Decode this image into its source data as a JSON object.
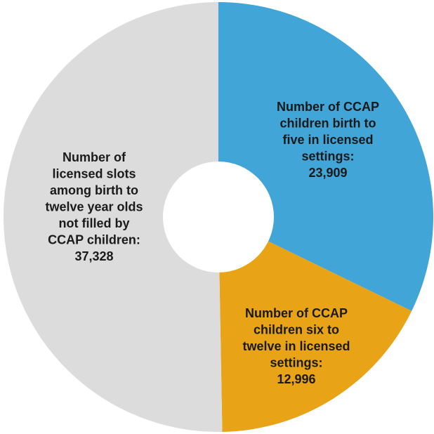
{
  "chart_data": {
    "type": "pie",
    "donut": true,
    "title": "",
    "slices": [
      {
        "label_lines": [
          "Number of CCAP",
          "children birth to",
          "five in licensed",
          "settings:"
        ],
        "value_text": "23,909",
        "value": 23909,
        "color": "#41A5D7"
      },
      {
        "label_lines": [
          "Number of CCAP",
          "children six to",
          "twelve in licensed",
          "settings:"
        ],
        "value_text": "12,996",
        "value": 12996,
        "color": "#E8A317"
      },
      {
        "label_lines": [
          "Number of",
          "licensed slots",
          "among birth to",
          "twelve year olds",
          "not filled by",
          "CCAP children:"
        ],
        "value_text": "37,328",
        "value": 37328,
        "color": "#DCDCDC"
      }
    ]
  }
}
